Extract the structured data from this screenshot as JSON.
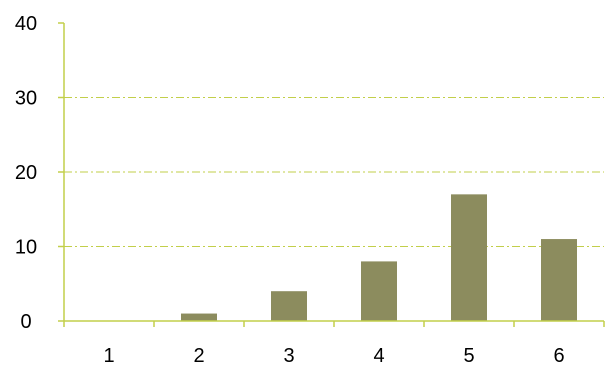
{
  "chart_data": {
    "type": "bar",
    "categories": [
      "1",
      "2",
      "3",
      "4",
      "5",
      "6"
    ],
    "values": [
      0,
      1,
      4,
      8,
      17,
      11
    ],
    "title": "",
    "xlabel": "",
    "ylabel": "",
    "ylim": [
      0,
      40
    ],
    "yticks": [
      0,
      10,
      20,
      30,
      40
    ],
    "grid": true,
    "grid_style": "dash-dot",
    "legend": "none",
    "colors": {
      "bar": "#8c8c5e",
      "axis": "#c2cf4a",
      "grid": "#c2cf4a",
      "text": "#000000"
    }
  }
}
